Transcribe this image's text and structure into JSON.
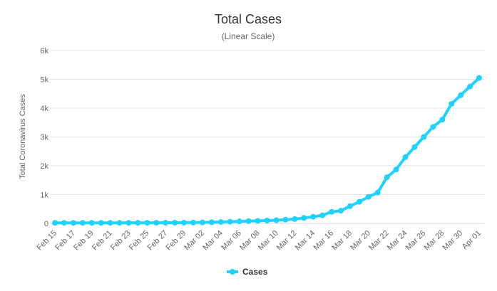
{
  "chart_data": {
    "type": "line",
    "title": "Total Cases",
    "subtitle": "(Linear Scale)",
    "y_label": "Total Coronavirus Cases",
    "categories": [
      "Feb 15",
      null,
      "Feb 17",
      null,
      "Feb 19",
      null,
      "Feb 21",
      null,
      "Feb 23",
      null,
      "Feb 25",
      null,
      "Feb 27",
      null,
      "Feb 29",
      null,
      "Mar 02",
      null,
      "Mar 04",
      null,
      "Mar 06",
      null,
      "Mar 08",
      null,
      "Mar 10",
      null,
      "Mar 12",
      null,
      "Mar 14",
      null,
      "Mar 16",
      null,
      "Mar 18",
      null,
      "Mar 20",
      null,
      "Mar 22",
      null,
      "Mar 24",
      null,
      "Mar 26",
      null,
      "Mar 28",
      null,
      "Mar 30",
      null,
      "Apr 01"
    ],
    "series": [
      {
        "name": "Cases",
        "color": "#1fd2ff",
        "values": [
          19,
          19,
          19,
          19,
          19,
          20,
          20,
          20,
          21,
          21,
          22,
          23,
          24,
          25,
          26,
          30,
          35,
          40,
          50,
          60,
          70,
          80,
          90,
          100,
          110,
          130,
          150,
          190,
          230,
          280,
          400,
          440,
          600,
          750,
          920,
          1070,
          1600,
          1870,
          2300,
          2650,
          3000,
          3350,
          3600,
          4150,
          4450,
          4750,
          5050
        ]
      }
    ],
    "ylim": [
      0,
      6000
    ],
    "yticks": [
      0,
      {
        "value": 1000,
        "label": "1k"
      },
      {
        "value": 2000,
        "label": "2k"
      },
      {
        "value": 3000,
        "label": "3k"
      },
      {
        "value": 4000,
        "label": "4k"
      },
      {
        "value": 5000,
        "label": "5k"
      },
      {
        "value": 6000,
        "label": "6k"
      }
    ],
    "grid": true,
    "legend": "bottom"
  }
}
